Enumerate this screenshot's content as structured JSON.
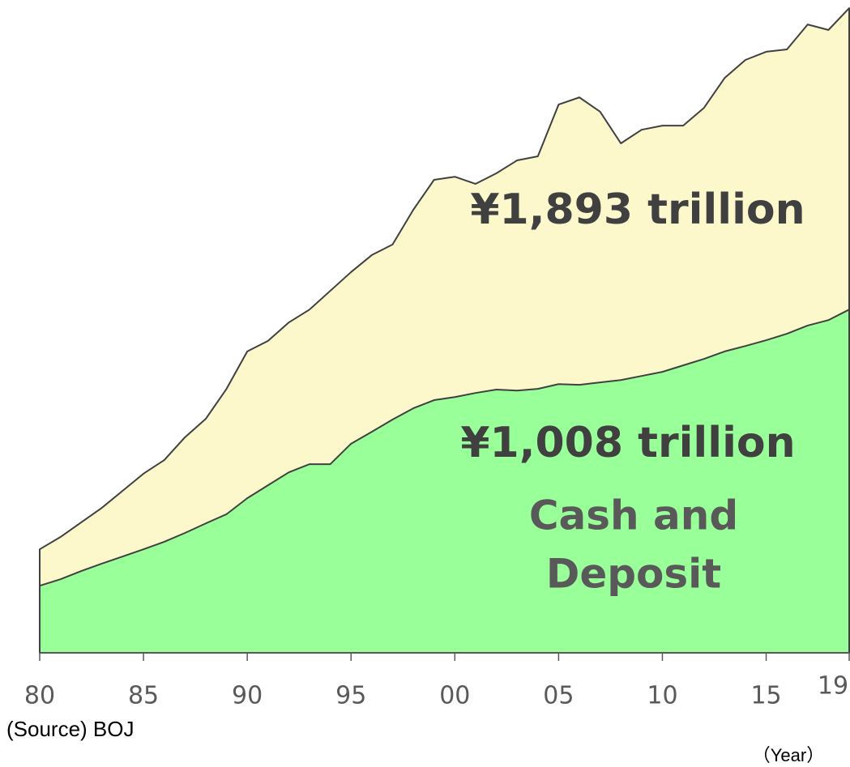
{
  "chart_data": {
    "type": "area",
    "x": [
      1980,
      1981,
      1982,
      1983,
      1984,
      1985,
      1986,
      1987,
      1988,
      1989,
      1990,
      1991,
      1992,
      1993,
      1994,
      1995,
      1996,
      1997,
      1998,
      1999,
      2000,
      2001,
      2002,
      2003,
      2004,
      2005,
      2006,
      2007,
      2008,
      2009,
      2010,
      2011,
      2012,
      2013,
      2014,
      2015,
      2016,
      2017,
      2018,
      2019
    ],
    "series": [
      {
        "color": "#fdf8cc",
        "values": [
          304,
          340,
          383,
          426,
          476,
          526,
          566,
          633,
          687,
          775,
          885,
          916,
          970,
          1008,
          1063,
          1118,
          1168,
          1199,
          1301,
          1389,
          1398,
          1377,
          1408,
          1446,
          1458,
          1610,
          1631,
          1589,
          1496,
          1536,
          1548,
          1548,
          1600,
          1688,
          1741,
          1765,
          1772,
          1845,
          1829,
          1893
        ]
      },
      {
        "color": "#99ff99",
        "values": [
          197,
          216,
          240,
          262,
          283,
          304,
          326,
          352,
          380,
          407,
          454,
          492,
          530,
          554,
          554,
          614,
          649,
          685,
          718,
          742,
          751,
          763,
          773,
          770,
          775,
          789,
          787,
          794,
          801,
          813,
          825,
          844,
          863,
          885,
          901,
          918,
          937,
          961,
          977,
          1008
        ]
      }
    ],
    "xlim": [
      1980,
      2019
    ],
    "ylim": [
      0,
      1917
    ],
    "xticks": [
      {
        "value": 1980,
        "label": "80"
      },
      {
        "value": 1985,
        "label": "85"
      },
      {
        "value": 1990,
        "label": "90"
      },
      {
        "value": 1995,
        "label": "95"
      },
      {
        "value": 2000,
        "label": "00"
      },
      {
        "value": 2005,
        "label": "05"
      },
      {
        "value": 2010,
        "label": "10"
      },
      {
        "value": 2015,
        "label": "15"
      },
      {
        "value": 2019,
        "label": "19"
      }
    ],
    "annotations": [
      "¥1,893 trillion",
      "¥1,008 trillion",
      "Cash and",
      "Deposit"
    ],
    "source": "(Source) BOJ",
    "x_label": "（Year）"
  }
}
